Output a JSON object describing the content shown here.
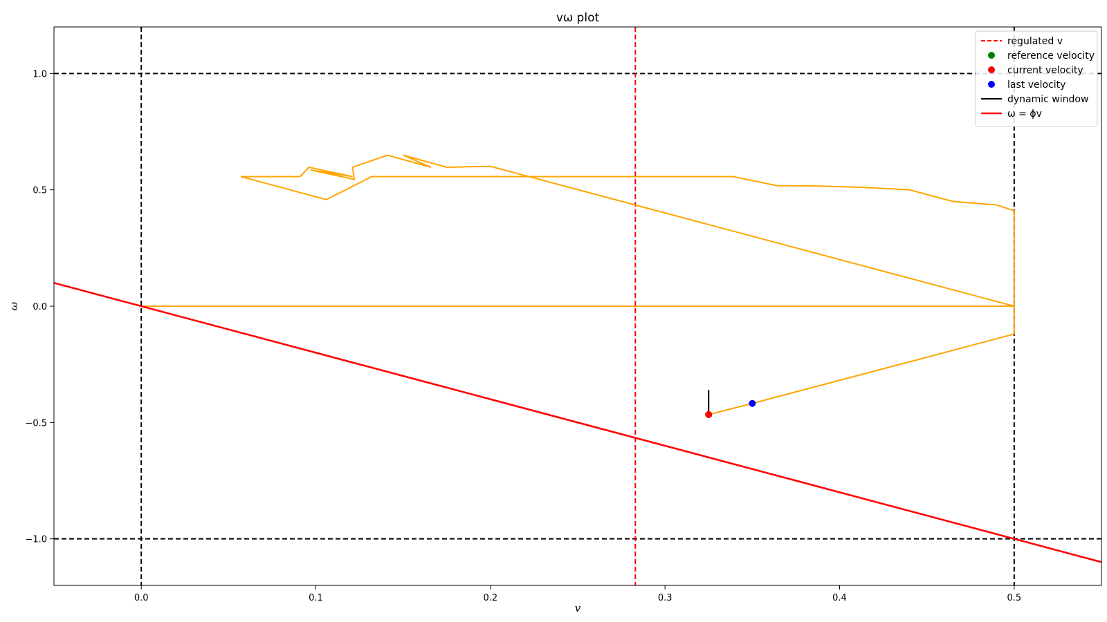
{
  "chart_data": {
    "type": "line",
    "title": "vω plot",
    "xlabel": "v",
    "ylabel": "ω",
    "xlim": [
      -0.05,
      0.55
    ],
    "ylim": [
      -1.2,
      1.2
    ],
    "x_ticks": [
      0.0,
      0.1,
      0.2,
      0.3,
      0.4,
      0.5
    ],
    "x_tick_labels": [
      "0.0",
      "0.1",
      "0.2",
      "0.3",
      "0.4",
      "0.5"
    ],
    "y_ticks": [
      -1.0,
      -0.5,
      0.0,
      0.5,
      1.0
    ],
    "y_tick_labels": [
      "−1.0",
      "−0.5",
      "0.0",
      "0.5",
      "1.0"
    ],
    "grid": false,
    "legend_position": "top-right",
    "colors": {
      "trajectory": "#ffa500",
      "regulated_v": "#ff0000",
      "reference": "#008000",
      "current": "#ff0000",
      "last": "#0000ff",
      "window": "#000000",
      "phi_line": "#ff0000",
      "bounds": "#000000"
    },
    "bound_lines": {
      "v": [
        0.0,
        0.5
      ],
      "omega": [
        -1.0,
        1.0
      ]
    },
    "regulated_v": 0.283,
    "trajectory": [
      [
        0.0,
        0.0
      ],
      [
        0.5,
        0.0
      ],
      [
        0.5,
        0.41
      ],
      [
        0.49,
        0.435
      ],
      [
        0.465,
        0.45
      ],
      [
        0.44,
        0.5
      ],
      [
        0.415,
        0.51
      ],
      [
        0.385,
        0.517
      ],
      [
        0.364,
        0.518
      ],
      [
        0.339,
        0.557
      ],
      [
        0.132,
        0.557
      ],
      [
        0.106,
        0.458
      ],
      [
        0.057,
        0.557
      ],
      [
        0.091,
        0.557
      ],
      [
        0.096,
        0.597
      ],
      [
        0.121,
        0.557
      ],
      [
        0.097,
        0.585
      ],
      [
        0.122,
        0.545
      ],
      [
        0.121,
        0.597
      ],
      [
        0.141,
        0.649
      ],
      [
        0.166,
        0.597
      ],
      [
        0.15,
        0.649
      ],
      [
        0.175,
        0.597
      ],
      [
        0.2,
        0.601
      ],
      [
        0.5,
        0.0
      ],
      [
        0.5,
        -0.12
      ],
      [
        0.35,
        -0.418
      ],
      [
        0.325,
        -0.466
      ]
    ],
    "reference_velocity": [
      0.325,
      -0.466
    ],
    "current_velocity": [
      0.325,
      -0.466
    ],
    "last_velocity": [
      0.35,
      -0.418
    ],
    "dynamic_window": [
      [
        0.325,
        -0.36
      ],
      [
        0.325,
        -0.466
      ]
    ],
    "phi": -2.0,
    "legend": [
      {
        "label": "regulated v",
        "kind": "dashed",
        "color": "#ff0000"
      },
      {
        "label": "reference velocity",
        "kind": "dot",
        "color": "#008000"
      },
      {
        "label": "current velocity",
        "kind": "dot",
        "color": "#ff0000"
      },
      {
        "label": "last velocity",
        "kind": "dot",
        "color": "#0000ff"
      },
      {
        "label": "dynamic window",
        "kind": "line",
        "color": "#000000"
      },
      {
        "label": "ω = ϕv",
        "kind": "line-thick",
        "color": "#ff0000"
      }
    ]
  }
}
